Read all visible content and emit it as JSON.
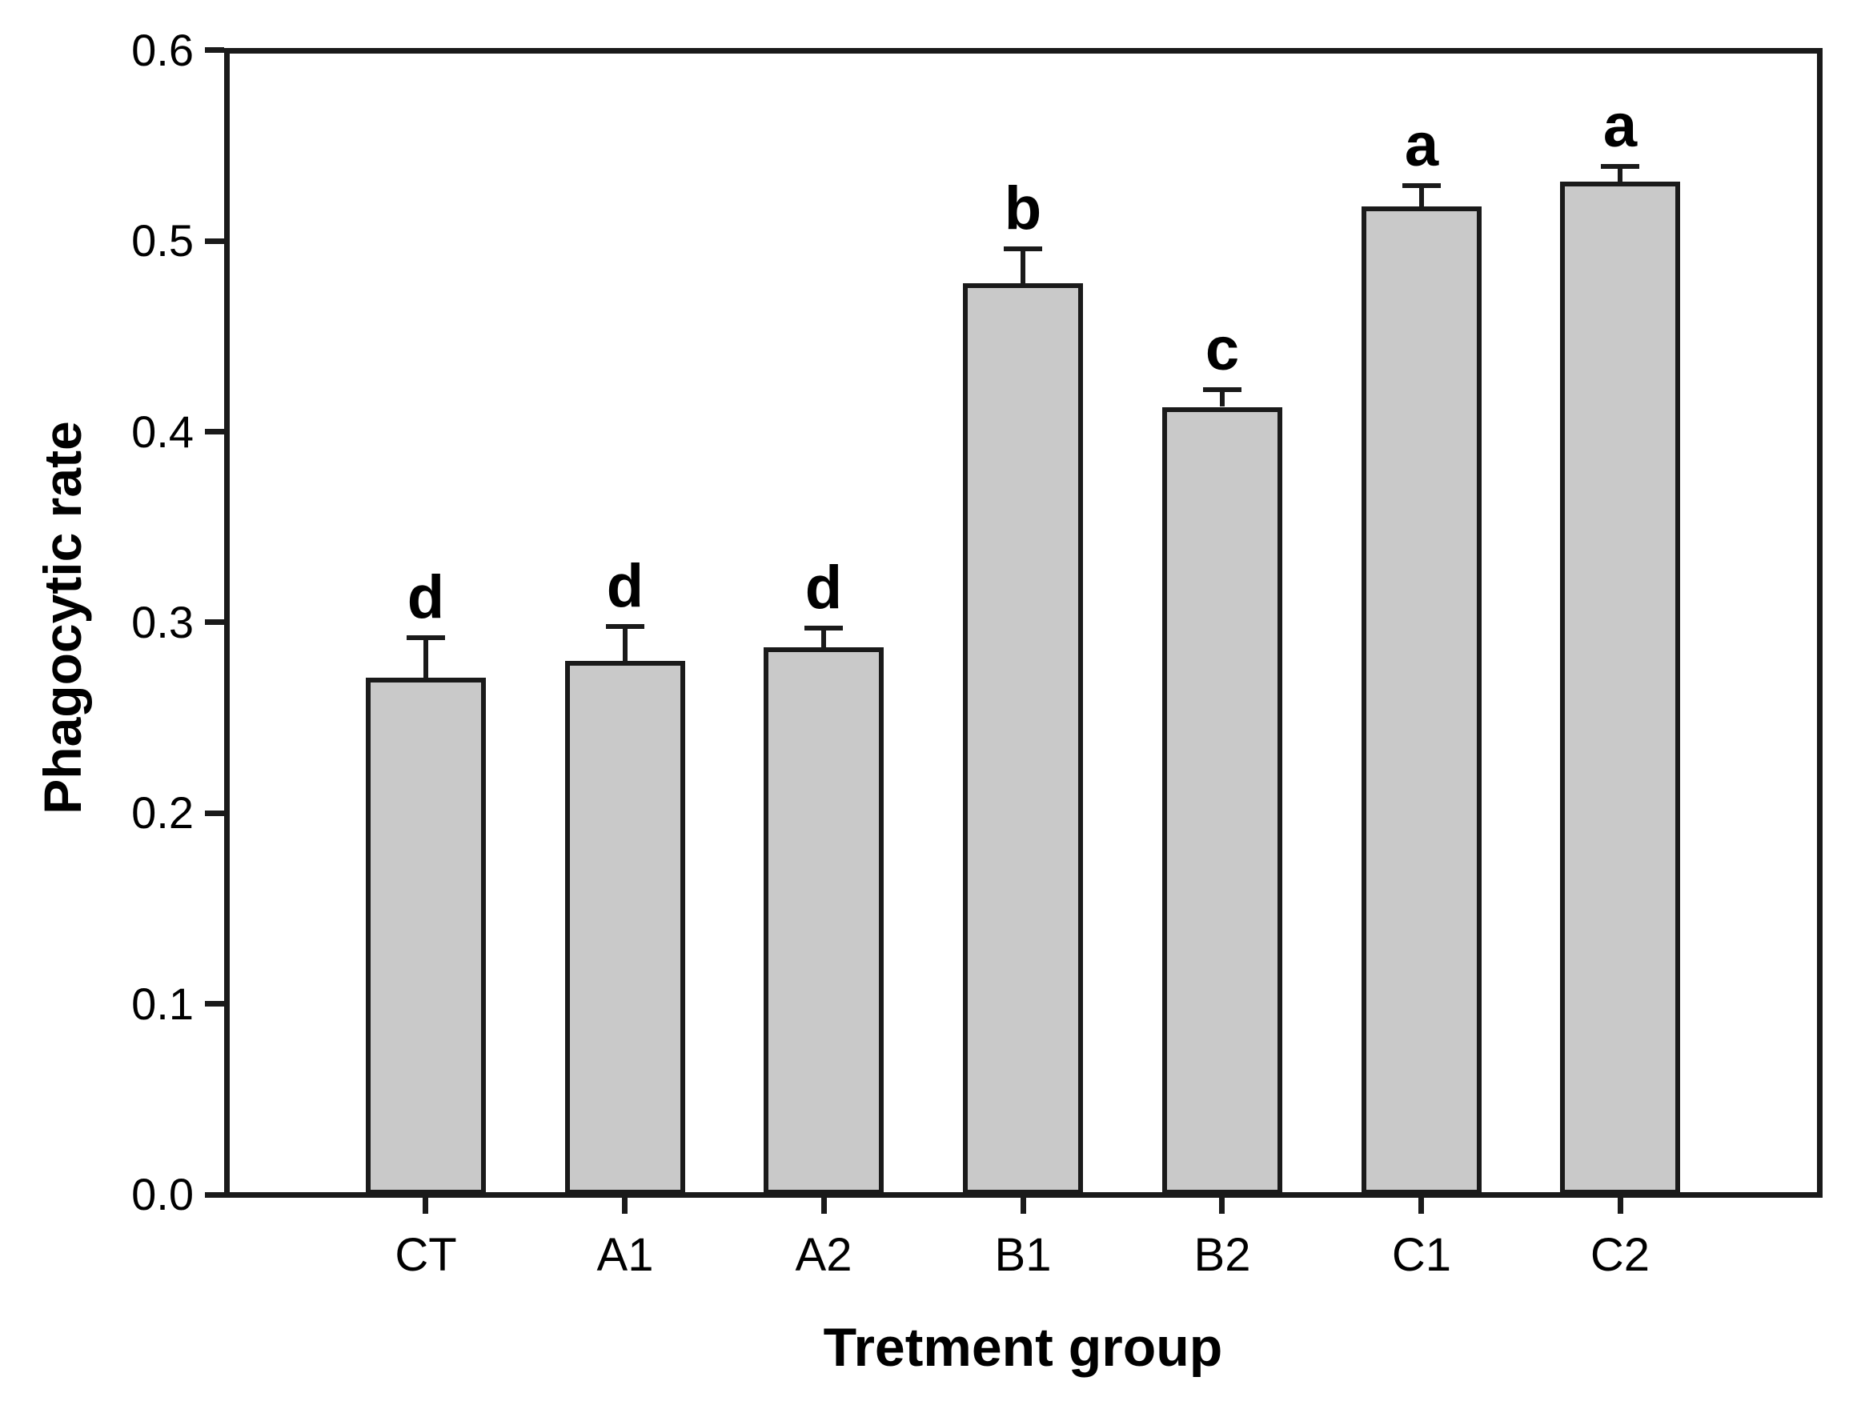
{
  "chart_data": {
    "type": "bar",
    "title": "",
    "categories": [
      "CT",
      "A1",
      "A2",
      "B1",
      "B2",
      "C1",
      "C2"
    ],
    "values": [
      0.271,
      0.28,
      0.287,
      0.478,
      0.413,
      0.518,
      0.531
    ],
    "errors_upper": [
      0.021,
      0.018,
      0.01,
      0.018,
      0.009,
      0.011,
      0.008
    ],
    "significance_letters": [
      "d",
      "d",
      "d",
      "b",
      "c",
      "a",
      "a"
    ],
    "xlabel": "Tretment group",
    "ylabel": "Phagocytic rate",
    "ylim": [
      0.0,
      0.6
    ],
    "ytick_step": 0.1,
    "ytick_labels": [
      "0.0",
      "0.1",
      "0.2",
      "0.3",
      "0.4",
      "0.5",
      "0.6"
    ],
    "grid": false,
    "legend": "none",
    "colors": {
      "bar_fill": "#c9c9c9",
      "bar_stroke": "#1a1a1a",
      "axis": "#1a1a1a",
      "text": "#000000",
      "background": "#ffffff"
    }
  }
}
